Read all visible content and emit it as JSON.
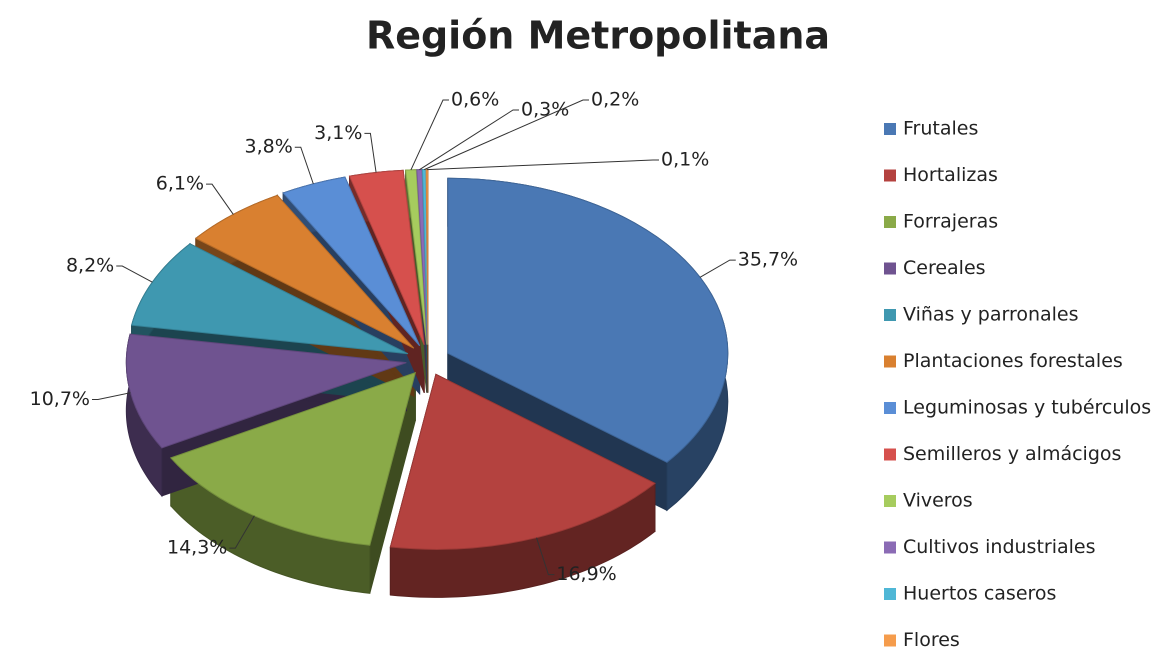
{
  "chart_data": {
    "type": "pie",
    "title": "Región Metropolitana",
    "categories": [
      "Frutales",
      "Hortalizas",
      "Forrajeras",
      "Cereales",
      "Viñas y parronales",
      "Plantaciones forestales",
      "Leguminosas y tubérculos",
      "Semilleros y almácigos",
      "Viveros",
      "Cultivos industriales",
      "Huertos caseros",
      "Flores"
    ],
    "values": [
      35.7,
      16.9,
      14.3,
      10.7,
      8.2,
      6.1,
      3.8,
      3.1,
      0.6,
      0.3,
      0.2,
      0.1
    ],
    "value_labels": [
      "35,7%",
      "16,9%",
      "14,3%",
      "10,7%",
      "8,2%",
      "6,1%",
      "3,8%",
      "3,1%",
      "0,6%",
      "0,3%",
      "0,2%",
      "0,1%"
    ],
    "colors": [
      "#4a78b4",
      "#b4423f",
      "#8aaa48",
      "#6f5390",
      "#3f98b0",
      "#d98030",
      "#5a8ed6",
      "#d6504d",
      "#a6cc5e",
      "#8b6bb5",
      "#4fb7d6",
      "#f59c4c"
    ],
    "legend": "right"
  }
}
